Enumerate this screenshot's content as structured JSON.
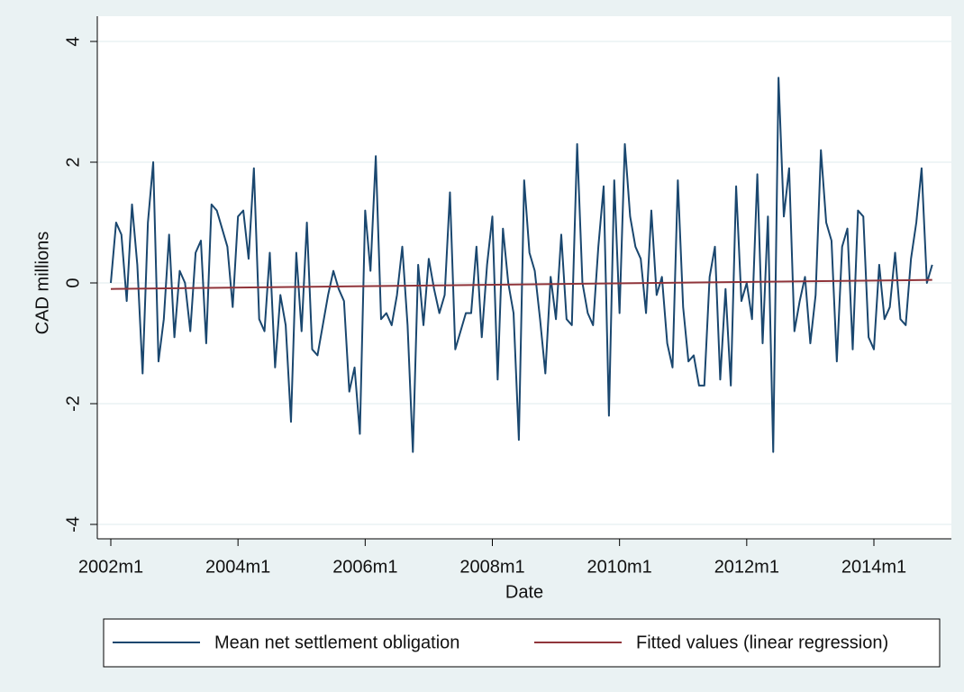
{
  "chart_data": {
    "type": "line",
    "xlabel": "Date",
    "ylabel": "CAD millions",
    "xlim": [
      500,
      662
    ],
    "ylim": [
      -4.2,
      4.0
    ],
    "xticks": [
      {
        "value": 504,
        "label": "2002m1"
      },
      {
        "value": 528,
        "label": "2004m1"
      },
      {
        "value": 552,
        "label": "2006m1"
      },
      {
        "value": 576,
        "label": "2008m1"
      },
      {
        "value": 600,
        "label": "2010m1"
      },
      {
        "value": 624,
        "label": "2012m1"
      },
      {
        "value": 648,
        "label": "2014m1"
      }
    ],
    "yticks": [
      -4,
      -2,
      0,
      2,
      4
    ],
    "grid": true,
    "series": [
      {
        "name": "Mean net settlement obligation",
        "color": "#1a476f",
        "x": [
          504,
          505,
          506,
          507,
          508,
          509,
          510,
          511,
          512,
          513,
          514,
          515,
          516,
          517,
          518,
          519,
          520,
          521,
          522,
          523,
          524,
          525,
          526,
          527,
          528,
          529,
          530,
          531,
          532,
          533,
          534,
          535,
          536,
          537,
          538,
          539,
          540,
          541,
          542,
          543,
          544,
          545,
          546,
          547,
          548,
          549,
          550,
          551,
          552,
          553,
          554,
          555,
          556,
          557,
          558,
          559,
          560,
          561,
          562,
          563,
          564,
          565,
          566,
          567,
          568,
          569,
          570,
          571,
          572,
          573,
          574,
          575,
          576,
          577,
          578,
          579,
          580,
          581,
          582,
          583,
          584,
          585,
          586,
          587,
          588,
          589,
          590,
          591,
          592,
          593,
          594,
          595,
          596,
          597,
          598,
          599,
          600,
          601,
          602,
          603,
          604,
          605,
          606,
          607,
          608,
          609,
          610,
          611,
          612,
          613,
          614,
          615,
          616,
          617,
          618,
          619,
          620,
          621,
          622,
          623,
          624,
          625,
          626,
          627,
          628,
          629,
          630,
          631,
          632,
          633,
          634,
          635,
          636,
          637,
          638,
          639,
          640,
          641,
          642,
          643,
          644,
          645,
          646,
          647,
          648,
          649,
          650,
          651,
          652,
          653,
          654,
          655,
          656,
          657,
          658,
          659
        ],
        "values": [
          0.0,
          1.0,
          0.8,
          -0.3,
          1.3,
          0.3,
          -1.5,
          1.0,
          2.0,
          -1.3,
          -0.6,
          0.8,
          -0.9,
          0.2,
          0.0,
          -0.8,
          0.5,
          0.7,
          -1.0,
          1.3,
          1.2,
          0.9,
          0.6,
          -0.4,
          1.1,
          1.2,
          0.4,
          1.9,
          -0.6,
          -0.8,
          0.5,
          -1.4,
          -0.2,
          -0.7,
          -2.3,
          0.5,
          -0.8,
          1.0,
          -1.1,
          -1.2,
          -0.7,
          -0.2,
          0.2,
          -0.1,
          -0.3,
          -1.8,
          -1.4,
          -2.5,
          1.2,
          0.2,
          2.1,
          -0.6,
          -0.5,
          -0.7,
          -0.2,
          0.6,
          -0.7,
          -2.8,
          0.3,
          -0.7,
          0.4,
          -0.1,
          -0.5,
          -0.2,
          1.5,
          -1.1,
          -0.8,
          -0.5,
          -0.5,
          0.6,
          -0.9,
          0.3,
          1.1,
          -1.6,
          0.9,
          0.0,
          -0.5,
          -2.6,
          1.7,
          0.5,
          0.2,
          -0.6,
          -1.5,
          0.1,
          -0.6,
          0.8,
          -0.6,
          -0.7,
          2.3,
          0.0,
          -0.5,
          -0.7,
          0.6,
          1.6,
          -2.2,
          1.7,
          -0.5,
          2.3,
          1.1,
          0.6,
          0.4,
          -0.5,
          1.2,
          -0.2,
          0.1,
          -1.0,
          -1.4,
          1.7,
          -0.4,
          -1.3,
          -1.2,
          -1.7,
          -1.7,
          0.1,
          0.6,
          -1.6,
          -0.1,
          -1.7,
          1.6,
          -0.3,
          0.0,
          -0.6,
          1.8,
          -1.0,
          1.1,
          -2.8,
          3.4,
          1.1,
          1.9,
          -0.8,
          -0.3,
          0.1,
          -1.0,
          -0.2,
          2.2,
          1.0,
          0.7,
          -1.3,
          0.6,
          0.9,
          -1.1,
          1.2,
          1.1,
          -0.9,
          -1.1,
          0.3,
          -0.6,
          -0.4,
          0.5,
          -0.6,
          -0.7,
          0.4,
          1.0,
          1.9,
          0.0,
          0.3
        ]
      },
      {
        "name": "Fitted values (linear regression)",
        "color": "#90353b",
        "x": [
          504,
          659
        ],
        "values": [
          -0.1,
          0.05
        ]
      }
    ]
  }
}
